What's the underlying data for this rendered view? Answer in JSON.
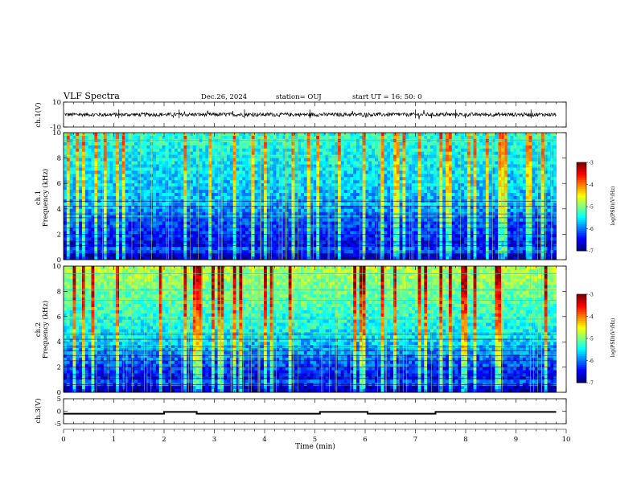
{
  "header": {
    "title": "VLF Spectra",
    "date": "Dec.26, 2024",
    "station": "station= OUJ",
    "start": "start  UT =  16: 50: 0"
  },
  "colors": {
    "spectrogram_low": "#00008b",
    "spectrogram_mid": "#00c8c8",
    "spectrogram_high": "#ff0000"
  },
  "chart_data": [
    {
      "type": "line",
      "panel": "ch1-waveform",
      "ylabel": "ch.1(V)",
      "ylim": [
        -10,
        10
      ],
      "yticks": [
        "10",
        "-10"
      ],
      "xlim": [
        0,
        10
      ],
      "description_values": {
        "baseline": 0,
        "noise_amplitude": 1.5
      }
    },
    {
      "type": "heatmap",
      "panel": "ch1-spectrogram",
      "ylabel": "ch.1\nFrequency (kHz)",
      "ylabel_line1": "ch.1",
      "ylabel_line2": "Frequency (kHz)",
      "ylim": [
        0,
        10
      ],
      "yticks": [
        "0",
        "2",
        "4",
        "6",
        "8",
        "10"
      ],
      "xlim": [
        0,
        9.8
      ],
      "colorbar": {
        "label": "log(PSD)(V²/Hz)",
        "range": [
          -7,
          -3
        ],
        "ticks": [
          "-3",
          "-4",
          "-5",
          "-6",
          "-7"
        ]
      }
    },
    {
      "type": "heatmap",
      "panel": "ch2-spectrogram",
      "ylabel": "ch.2\nFrequency (kHz)",
      "ylabel_line1": "ch.2",
      "ylabel_line2": "Frequency (kHz)",
      "ylim": [
        0,
        10
      ],
      "yticks": [
        "0",
        "2",
        "4",
        "6",
        "8",
        "10"
      ],
      "xlim": [
        0,
        9.8
      ],
      "colorbar": {
        "label": "log(PSD)(V²/Hz)",
        "range": [
          -7,
          -3
        ],
        "ticks": [
          "-3",
          "-4",
          "-5",
          "-6",
          "-7"
        ]
      }
    },
    {
      "type": "line",
      "panel": "ch3-trigger",
      "ylabel": "ch.3(V)",
      "ylim": [
        -5,
        5
      ],
      "yticks": [
        "5",
        "0",
        "-5"
      ],
      "xlim": [
        0,
        10
      ],
      "xlabel": "Time (min)",
      "xticks": [
        "0",
        "1",
        "2",
        "3",
        "4",
        "5",
        "6",
        "7",
        "8",
        "9",
        "10"
      ],
      "x": [
        0,
        2.0,
        2.0,
        2.65,
        2.65,
        5.1,
        5.1,
        6.05,
        6.05,
        7.4,
        7.4,
        9.8
      ],
      "y": [
        -1,
        -1,
        -0.3,
        -0.3,
        -1,
        -1,
        -0.3,
        -0.3,
        -1,
        -1,
        -0.3,
        -0.3
      ]
    }
  ]
}
